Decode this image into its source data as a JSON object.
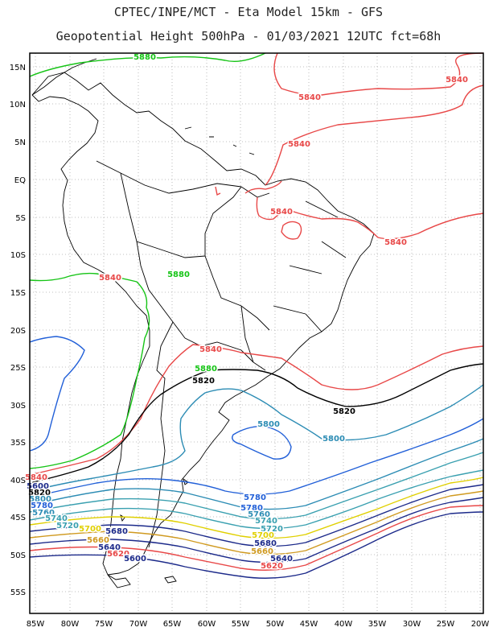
{
  "header": {
    "line1": "CPTEC/INPE/MCT -  Eta Model 15km - GFS",
    "line2": "Geopotential Height 500hPa - 01/03/2021 12UTC fct=68h"
  },
  "lat_ticks": [
    "15N",
    "10N",
    "5N",
    "EQ",
    "5S",
    "10S",
    "15S",
    "20S",
    "25S",
    "30S",
    "35S",
    "40S",
    "45S",
    "50S",
    "55S"
  ],
  "lon_ticks": [
    "85W",
    "80W",
    "75W",
    "70W",
    "65W",
    "60W",
    "55W",
    "50W",
    "45W",
    "40W",
    "35W",
    "30W",
    "25W",
    "20W"
  ],
  "contour_labels": [
    {
      "text": "5880",
      "color": "#16c416"
    },
    {
      "text": "5840",
      "color": "#e84848"
    },
    {
      "text": "5840",
      "color": "#e84848"
    },
    {
      "text": "5840",
      "color": "#e84848"
    },
    {
      "text": "5840",
      "color": "#e84848"
    },
    {
      "text": "5840",
      "color": "#e84848"
    },
    {
      "text": "5840",
      "color": "#e84848"
    },
    {
      "text": "5840",
      "color": "#e84848"
    },
    {
      "text": "5880",
      "color": "#16c416"
    },
    {
      "text": "5820",
      "color": "#000000"
    },
    {
      "text": "5820",
      "color": "#000000"
    },
    {
      "text": "5800",
      "color": "#2c8cb4"
    },
    {
      "text": "5800",
      "color": "#2c8cb4"
    },
    {
      "text": "5780",
      "color": "#2260d8"
    },
    {
      "text": "5780",
      "color": "#2260d8"
    },
    {
      "text": "5760",
      "color": "#2c8cb4"
    },
    {
      "text": "5740",
      "color": "#3aa0b0"
    },
    {
      "text": "5720",
      "color": "#3aa0b0"
    },
    {
      "text": "5700",
      "color": "#e0d000"
    },
    {
      "text": "5680",
      "color": "#1c2a8a"
    },
    {
      "text": "5660",
      "color": "#d09a20"
    },
    {
      "text": "5640",
      "color": "#1c2a8a"
    },
    {
      "text": "5620",
      "color": "#e84848"
    },
    {
      "text": "5600",
      "color": "#1c2a8a"
    },
    {
      "text": "5820",
      "color": "#000000"
    },
    {
      "text": "5800",
      "color": "#2c8cb4"
    },
    {
      "text": "5780",
      "color": "#2260d8"
    },
    {
      "text": "5760",
      "color": "#2c8cb4"
    },
    {
      "text": "5740",
      "color": "#3aa0b0"
    },
    {
      "text": "5720",
      "color": "#3aa0b0"
    },
    {
      "text": "5700",
      "color": "#e0d000"
    },
    {
      "text": "5680",
      "color": "#1c2a8a"
    },
    {
      "text": "5660",
      "color": "#d09a20"
    },
    {
      "text": "5640",
      "color": "#1c2a8a"
    },
    {
      "text": "5620",
      "color": "#e84848"
    },
    {
      "text": "5600",
      "color": "#1c2a8a"
    },
    {
      "text": "5840",
      "color": "#e84848"
    },
    {
      "text": "5880",
      "color": "#16c416"
    }
  ]
}
